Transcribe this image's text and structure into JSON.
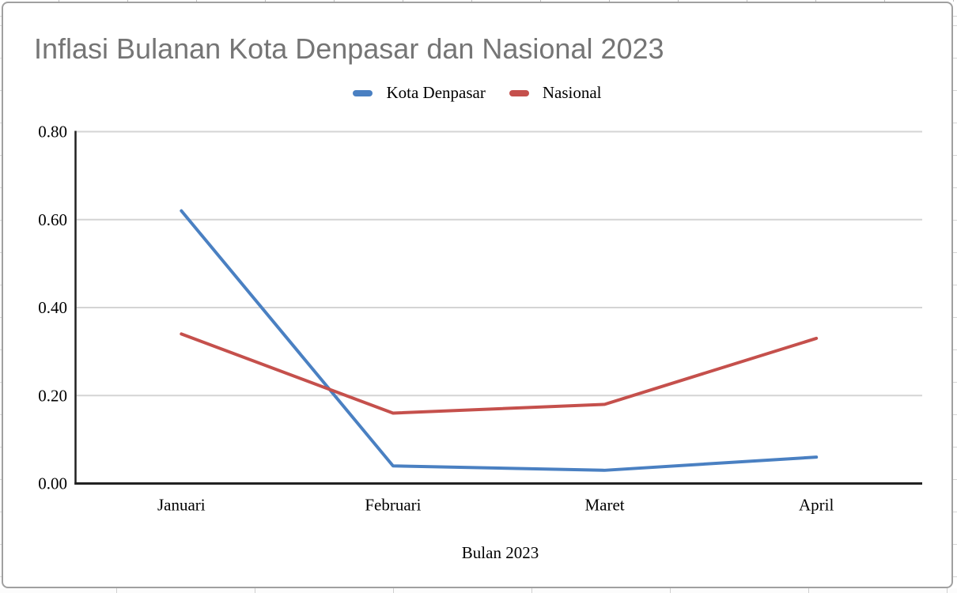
{
  "chart_data": {
    "type": "line",
    "title": "Inflasi Bulanan Kota Denpasar dan Nasional 2023",
    "title_color": "#757575",
    "categories": [
      "Januari",
      "Februari",
      "Maret",
      "April"
    ],
    "series": [
      {
        "name": "Kota Denpasar",
        "color": "#4a80c2",
        "values": [
          0.62,
          0.04,
          0.03,
          0.06
        ]
      },
      {
        "name": "Nasional",
        "color": "#c5504c",
        "values": [
          0.34,
          0.16,
          0.18,
          0.33
        ]
      }
    ],
    "xlabel": "Bulan 2023",
    "ylabel": "",
    "ylim": [
      0,
      0.8
    ],
    "yticks": [
      "0.00",
      "0.20",
      "0.40",
      "0.60",
      "0.80"
    ],
    "grid": true,
    "legend_position": "top",
    "colors": {
      "gridline": "#d4d4d4",
      "axis": "#212121",
      "tick_text": "#000000"
    }
  }
}
